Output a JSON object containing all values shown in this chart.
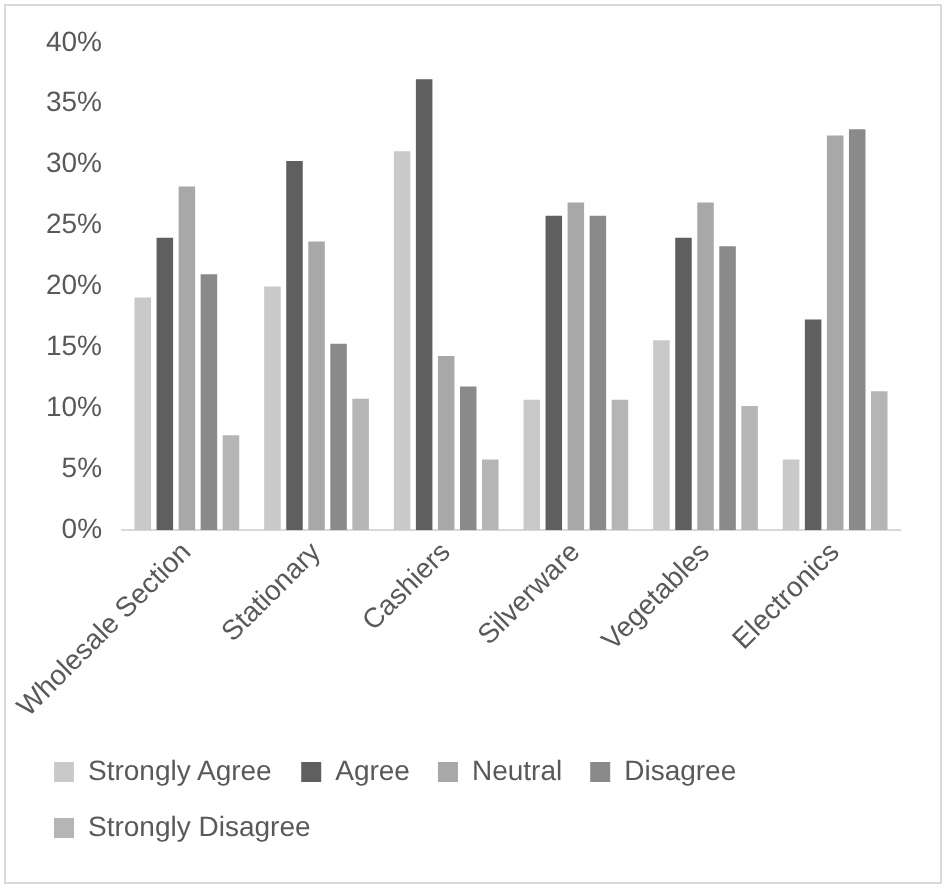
{
  "chart_data": {
    "type": "bar",
    "categories": [
      "Wholesale Section",
      "Stationary",
      "Cashiers",
      "Silverware",
      "Vegetables",
      "Electronics"
    ],
    "series": [
      {
        "name": "Strongly Agree",
        "color": "#c9c9c9",
        "values": [
          19.1,
          20,
          31.1,
          10.7,
          15.6,
          5.8
        ]
      },
      {
        "name": "Agree",
        "color": "#5f5f5f",
        "values": [
          24,
          30.3,
          37,
          25.8,
          24,
          17.3
        ]
      },
      {
        "name": "Neutral",
        "color": "#a8a8a8",
        "values": [
          28.2,
          23.7,
          14.3,
          26.9,
          26.9,
          32.4
        ]
      },
      {
        "name": "Disagree",
        "color": "#8a8a8a",
        "values": [
          21,
          15.3,
          11.8,
          25.8,
          23.3,
          32.9
        ]
      },
      {
        "name": "Strongly Disagree",
        "color": "#b5b5b5",
        "values": [
          7.8,
          10.8,
          5.8,
          10.7,
          10.2,
          11.4
        ]
      }
    ],
    "ylim": [
      0,
      40
    ],
    "yticks": [
      {
        "value": 0,
        "label": "0%"
      },
      {
        "value": 5,
        "label": "5%"
      },
      {
        "value": 10,
        "label": "10%"
      },
      {
        "value": 15,
        "label": "15%"
      },
      {
        "value": 20,
        "label": "20%"
      },
      {
        "value": 25,
        "label": "25%"
      },
      {
        "value": 30,
        "label": "30%"
      },
      {
        "value": 35,
        "label": "35%"
      },
      {
        "value": 40,
        "label": "40%"
      }
    ],
    "grid": false,
    "legend": "bottom"
  }
}
